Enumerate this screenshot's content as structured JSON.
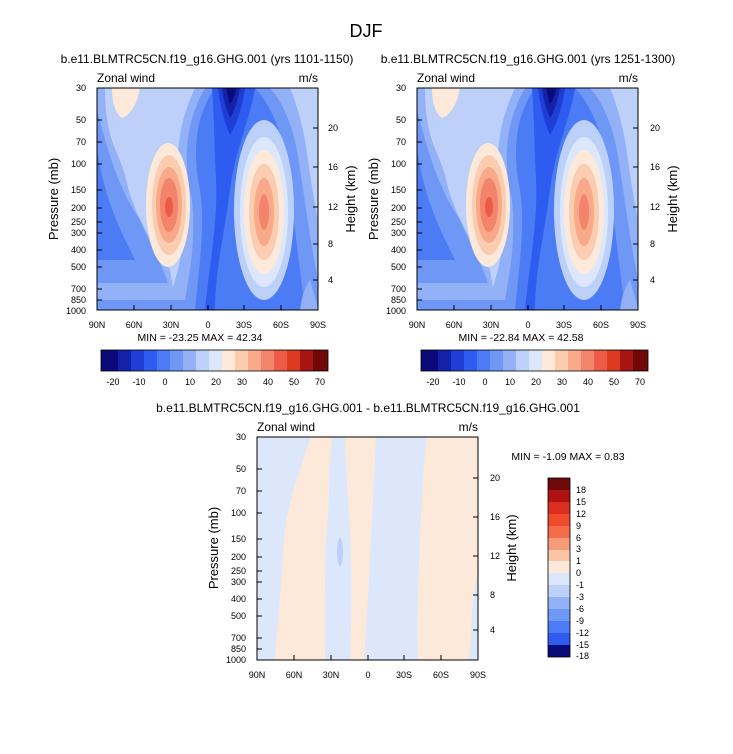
{
  "page": {
    "title": "DJF"
  },
  "chart_data": [
    {
      "type": "heatmap",
      "title": "b.e11.BLMTRC5CN.f19_g16.GHG.001 (yrs 1101-1150)",
      "left_label": "Zonal wind",
      "right_label": "m/s",
      "xlabel": "",
      "ylabel": "Pressure (mb)",
      "y2label": "Height (km)",
      "x_ticks": [
        "90N",
        "60N",
        "30N",
        "0",
        "30S",
        "60S",
        "90S"
      ],
      "y_ticks": [
        "30",
        "50",
        "70",
        "100",
        "150",
        "200",
        "250",
        "300",
        "400",
        "500",
        "700",
        "850",
        "1000"
      ],
      "y2_ticks": [
        "4",
        "8",
        "12",
        "16",
        "20"
      ],
      "ylim": [
        1000,
        30
      ],
      "min_max_label": "MIN = -23.25   MAX =  42.34",
      "min": -23.25,
      "max": 42.34,
      "colorbar": {
        "orientation": "horizontal",
        "labels": [
          "-20",
          "-10",
          "0",
          "10",
          "20",
          "30",
          "40",
          "50",
          "70"
        ]
      },
      "features": [
        {
          "kind": "jet",
          "lat": 30,
          "level_mb": 200,
          "peak": 42
        },
        {
          "kind": "jet",
          "lat": -47,
          "level_mb": 200,
          "peak": 32
        },
        {
          "kind": "easterly",
          "lat": -10,
          "level_mb": 30,
          "peak": -23
        }
      ]
    },
    {
      "type": "heatmap",
      "title": "b.e11.BLMTRC5CN.f19_g16.GHG.001 (yrs 1251-1300)",
      "left_label": "Zonal wind",
      "right_label": "m/s",
      "xlabel": "",
      "ylabel": "Pressure (mb)",
      "y2label": "Height (km)",
      "x_ticks": [
        "90N",
        "60N",
        "30N",
        "0",
        "30S",
        "60S",
        "90S"
      ],
      "y_ticks": [
        "30",
        "50",
        "70",
        "100",
        "150",
        "200",
        "250",
        "300",
        "400",
        "500",
        "700",
        "850",
        "1000"
      ],
      "y2_ticks": [
        "4",
        "8",
        "12",
        "16",
        "20"
      ],
      "ylim": [
        1000,
        30
      ],
      "min_max_label": "MIN = -22.84   MAX =  42.58",
      "min": -22.84,
      "max": 42.58,
      "colorbar": {
        "orientation": "horizontal",
        "labels": [
          "-20",
          "-10",
          "0",
          "10",
          "20",
          "30",
          "40",
          "50",
          "70"
        ]
      },
      "features": [
        {
          "kind": "jet",
          "lat": 30,
          "level_mb": 200,
          "peak": 42
        },
        {
          "kind": "jet",
          "lat": -47,
          "level_mb": 200,
          "peak": 32
        },
        {
          "kind": "easterly",
          "lat": -10,
          "level_mb": 30,
          "peak": -23
        }
      ]
    },
    {
      "type": "heatmap",
      "title": "b.e11.BLMTRC5CN.f19_g16.GHG.001 - b.e11.BLMTRC5CN.f19_g16.GHG.001",
      "left_label": "Zonal wind",
      "right_label": "m/s",
      "xlabel": "",
      "ylabel": "Pressure (mb)",
      "y2label": "Height (km)",
      "x_ticks": [
        "90N",
        "60N",
        "30N",
        "0",
        "30S",
        "60S",
        "90S"
      ],
      "y_ticks": [
        "30",
        "50",
        "70",
        "100",
        "150",
        "200",
        "250",
        "300",
        "400",
        "500",
        "700",
        "850",
        "1000"
      ],
      "y2_ticks": [
        "4",
        "8",
        "12",
        "16",
        "20"
      ],
      "ylim": [
        1000,
        30
      ],
      "min_max_label": "MIN = -1.09   MAX =   0.83",
      "min": -1.09,
      "max": 0.83,
      "colorbar": {
        "orientation": "vertical",
        "labels": [
          "18",
          "15",
          "12",
          "9",
          "6",
          "3",
          "1",
          "0",
          "-1",
          "-3",
          "-6",
          "-9",
          "-12",
          "-15",
          "-18"
        ]
      },
      "features": [
        {
          "kind": "band",
          "from_lat": 55,
          "to_lat": 13,
          "sign": "positive"
        },
        {
          "kind": "band",
          "from_lat": -35,
          "to_lat": -75,
          "sign": "positive"
        }
      ]
    }
  ],
  "colors": {
    "abs_scale": [
      "#0a0a7a",
      "#1421a8",
      "#1f3ed6",
      "#2e5cf0",
      "#4c7cf5",
      "#6f97f5",
      "#93b1f7",
      "#bcd0fa",
      "#dde7fb",
      "#fde9d9",
      "#fbcdb0",
      "#f8a98a",
      "#f3836b",
      "#ec5a48",
      "#dc3b20",
      "#a81414",
      "#700808"
    ],
    "diff_scale": [
      "#6f0a0a",
      "#ae1414",
      "#dc2e1e",
      "#ef4a2b",
      "#f46b4a",
      "#f79a78",
      "#fbc4a5",
      "#fde9d9",
      "#dde7fb",
      "#bcd0fa",
      "#93b1f7",
      "#6f97f5",
      "#4c7cf5",
      "#2e5cf0",
      "#1f3ed6",
      "#0a0a7a"
    ]
  }
}
